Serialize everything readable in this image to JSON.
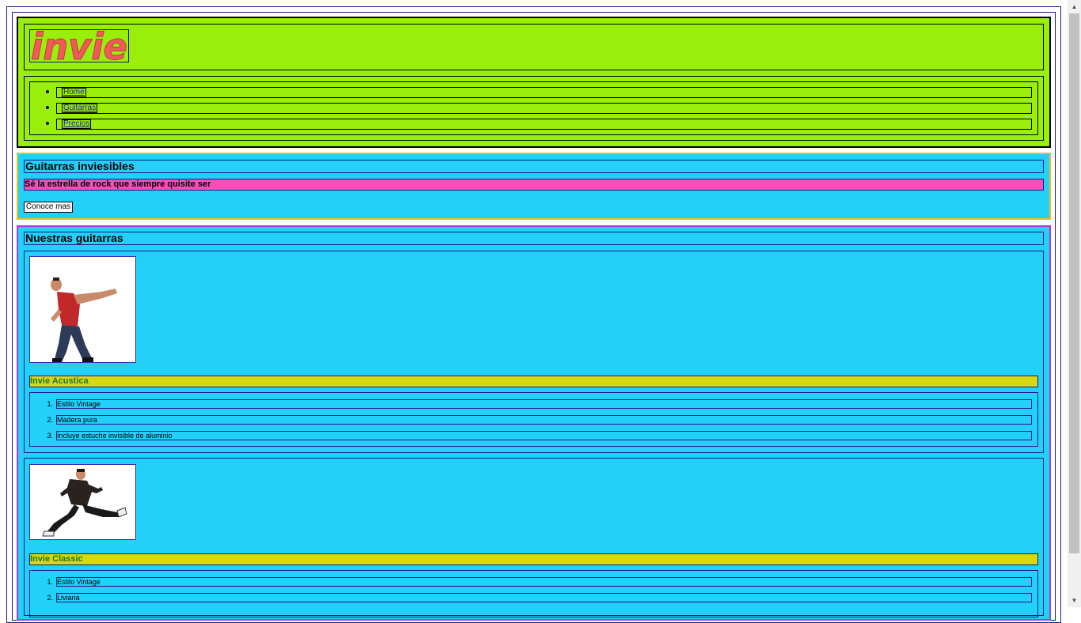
{
  "header": {
    "logo_text": "invie",
    "nav": [
      {
        "label": "Home"
      },
      {
        "label": "Guitarras"
      },
      {
        "label": "Precios"
      }
    ]
  },
  "hero": {
    "title": "Guitarras inviesibles",
    "subtitle": "Sé la estrella de rock que siempre quisite ser",
    "button_label": "Conoce mas"
  },
  "products": {
    "title": "Nuestras guitarras",
    "items": [
      {
        "name": "Invie Acustica",
        "features": [
          "Estilo Vintage",
          "Madera pura",
          "Incluye estuche invisible de aluminio"
        ]
      },
      {
        "name": "Invie Classic",
        "features": [
          "Estilo Vintage",
          "Liviana"
        ]
      }
    ]
  },
  "colors": {
    "header_bg": "#99ee0a",
    "section_bg": "#22d0f8",
    "subtitle_bg": "#f050b8",
    "product_name_bg": "#d8d812",
    "product_name_text": "#1a7a2a",
    "logo": "#f25a5a"
  }
}
